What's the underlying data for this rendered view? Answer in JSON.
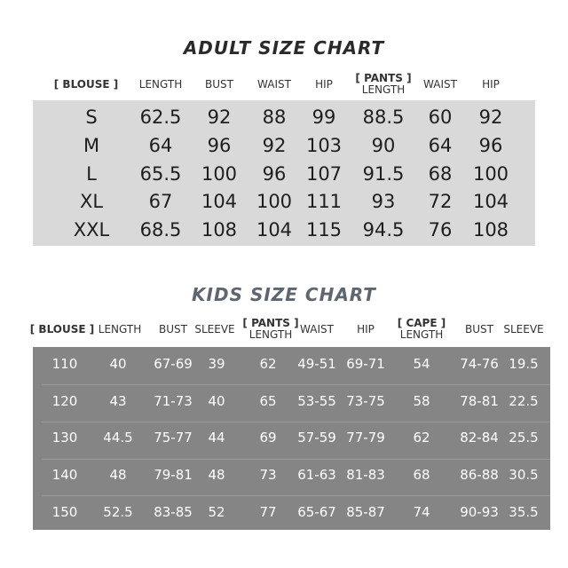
{
  "adult": {
    "title": "ADULT SIZE CHART",
    "headers": [
      {
        "group": "[ BLOUSE ]",
        "label": ""
      },
      {
        "group": "",
        "label": "LENGTH"
      },
      {
        "group": "",
        "label": "BUST"
      },
      {
        "group": "",
        "label": "WAIST"
      },
      {
        "group": "",
        "label": "HIP"
      },
      {
        "group": "[ PANTS ]",
        "label": "LENGTH"
      },
      {
        "group": "",
        "label": "WAIST"
      },
      {
        "group": "",
        "label": "HIP"
      }
    ],
    "rows": [
      [
        "S",
        "62.5",
        "92",
        "88",
        "99",
        "88.5",
        "60",
        "92"
      ],
      [
        "M",
        "64",
        "96",
        "92",
        "103",
        "90",
        "64",
        "96"
      ],
      [
        "L",
        "65.5",
        "100",
        "96",
        "107",
        "91.5",
        "68",
        "100"
      ],
      [
        "XL",
        "67",
        "104",
        "100",
        "111",
        "93",
        "72",
        "104"
      ],
      [
        "XXL",
        "68.5",
        "108",
        "104",
        "115",
        "94.5",
        "76",
        "108"
      ]
    ]
  },
  "kids": {
    "title": "KIDS SIZE CHART",
    "headers": [
      {
        "group": "[ BLOUSE ]",
        "label": ""
      },
      {
        "group": "",
        "label": "LENGTH"
      },
      {
        "group": "",
        "label": "BUST"
      },
      {
        "group": "",
        "label": "SLEEVE"
      },
      {
        "group": "[ PANTS ]",
        "label": "LENGTH"
      },
      {
        "group": "",
        "label": "WAIST"
      },
      {
        "group": "",
        "label": "HIP"
      },
      {
        "group": "[ CAPE ]",
        "label": "LENGTH"
      },
      {
        "group": "",
        "label": "BUST"
      },
      {
        "group": "",
        "label": "SLEEVE"
      }
    ],
    "rows": [
      [
        "110",
        "40",
        "67-69",
        "39",
        "62",
        "49-51",
        "69-71",
        "54",
        "74-76",
        "19.5"
      ],
      [
        "120",
        "43",
        "71-73",
        "40",
        "65",
        "53-55",
        "73-75",
        "58",
        "78-81",
        "22.5"
      ],
      [
        "130",
        "44.5",
        "75-77",
        "44",
        "69",
        "57-59",
        "77-79",
        "62",
        "82-84",
        "25.5"
      ],
      [
        "140",
        "48",
        "79-81",
        "48",
        "73",
        "61-63",
        "81-83",
        "68",
        "86-88",
        "30.5"
      ],
      [
        "150",
        "52.5",
        "83-85",
        "52",
        "77",
        "65-67",
        "85-87",
        "74",
        "90-93",
        "35.5"
      ]
    ]
  },
  "colors": {
    "adult_bg": "#d9d9d9",
    "kids_bg": "#858585",
    "kids_title": "#5e6670"
  }
}
